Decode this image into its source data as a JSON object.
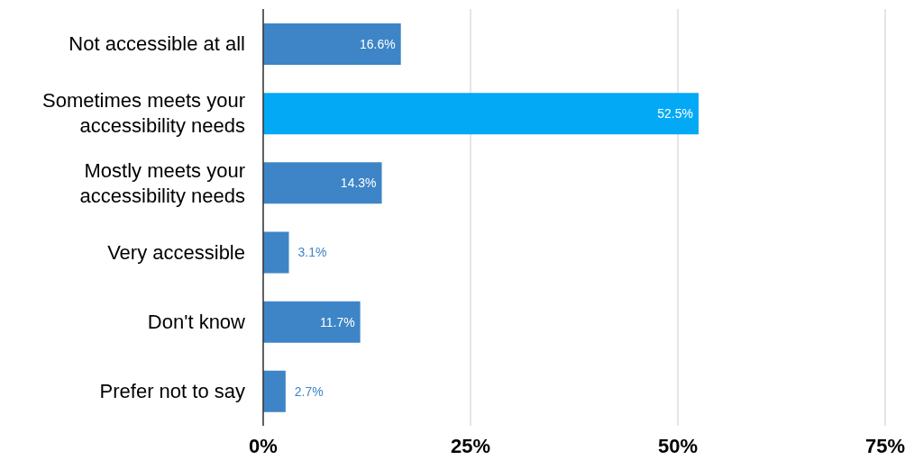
{
  "chart_data": {
    "type": "bar",
    "orientation": "horizontal",
    "categories": [
      "Not accessible at all",
      "Sometimes meets your accessibility needs",
      "Mostly meets your accessibility needs",
      "Very accessible",
      "Don't know",
      "Prefer not to say"
    ],
    "values": [
      16.6,
      52.5,
      14.3,
      3.1,
      11.7,
      2.7
    ],
    "colors": [
      "#3d85c6",
      "#03a9f4",
      "#3d85c6",
      "#3d85c6",
      "#3d85c6",
      "#3d85c6"
    ],
    "value_labels": [
      "16.6%",
      "52.5%",
      "14.3%",
      "3.1%",
      "11.7%",
      "2.7%"
    ],
    "xlim": [
      0,
      75
    ],
    "xticks": [
      {
        "value": 0,
        "label": "0%"
      },
      {
        "value": 25,
        "label": "25%"
      },
      {
        "value": 50,
        "label": "50%"
      },
      {
        "value": 75,
        "label": "75%"
      }
    ],
    "grid": "x",
    "legend": false
  }
}
